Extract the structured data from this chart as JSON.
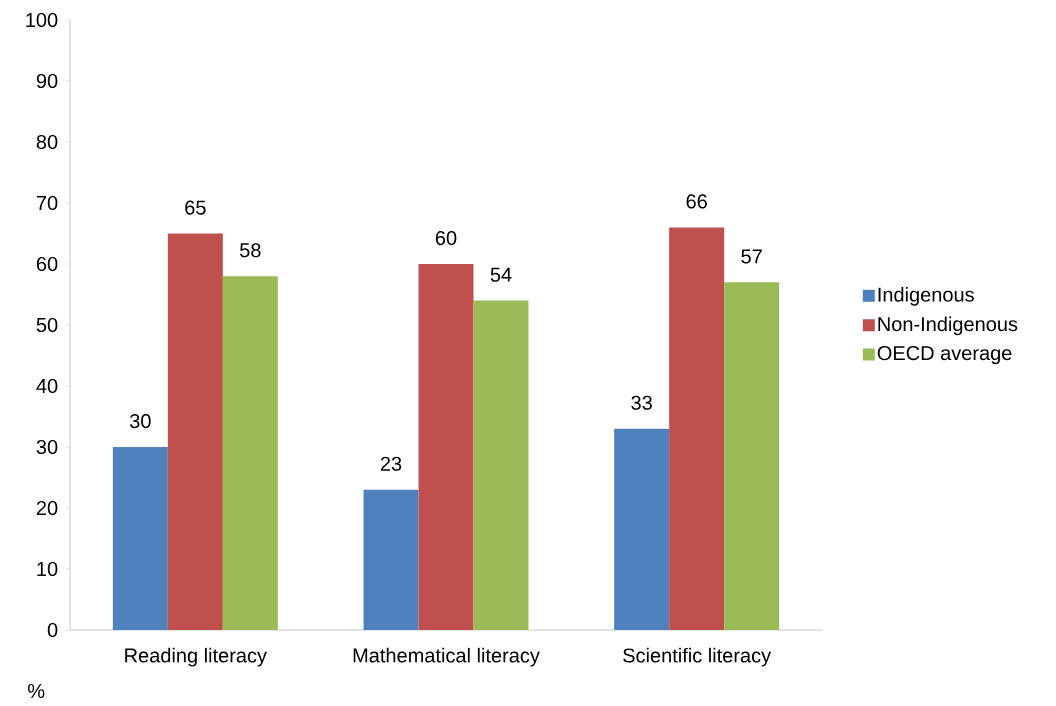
{
  "chart_data": {
    "type": "bar",
    "ylabel": "%",
    "categories": [
      "Reading literacy",
      "Mathematical literacy",
      "Scientific literacy"
    ],
    "series": [
      {
        "name": "Indigenous",
        "color": "#4f81bd",
        "values": [
          30,
          23,
          33
        ]
      },
      {
        "name": "Non-Indigenous",
        "color": "#c0504d",
        "values": [
          65,
          60,
          66
        ]
      },
      {
        "name": "OECD average",
        "color": "#9bbb59",
        "values": [
          58,
          54,
          57
        ]
      }
    ],
    "ylim": [
      0,
      100
    ],
    "yticks": [
      0,
      10,
      20,
      30,
      40,
      50,
      60,
      70,
      80,
      90,
      100
    ],
    "data_labels": true,
    "legend": "right"
  }
}
